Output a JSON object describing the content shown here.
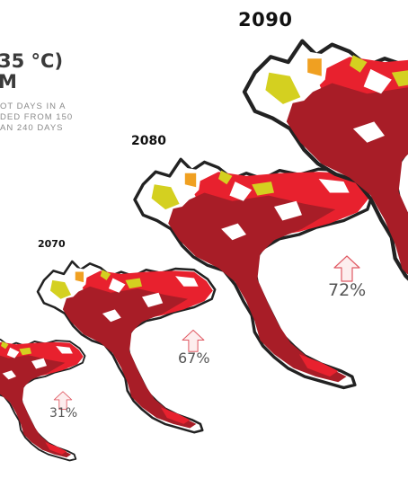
{
  "title": {
    "line1": "35 °C)",
    "line2": "M"
  },
  "description": {
    "line1": "OT DAYS IN A",
    "line2": "DED FROM 150",
    "line3": "AN 240 DAYS"
  },
  "maps": [
    {
      "year": "2070",
      "percent": "31%"
    },
    {
      "year": "2070",
      "percent": "67%"
    },
    {
      "year": "2080",
      "percent": "72%"
    },
    {
      "year": "2090",
      "percent": ""
    }
  ],
  "colors": {
    "dark_red": "#a81d27",
    "red": "#e8212e",
    "orange": "#f0a021",
    "yellow": "#d4d020",
    "outline": "#222222",
    "arrow": "#e05a64"
  },
  "icons": [
    "up-arrow-icon"
  ]
}
